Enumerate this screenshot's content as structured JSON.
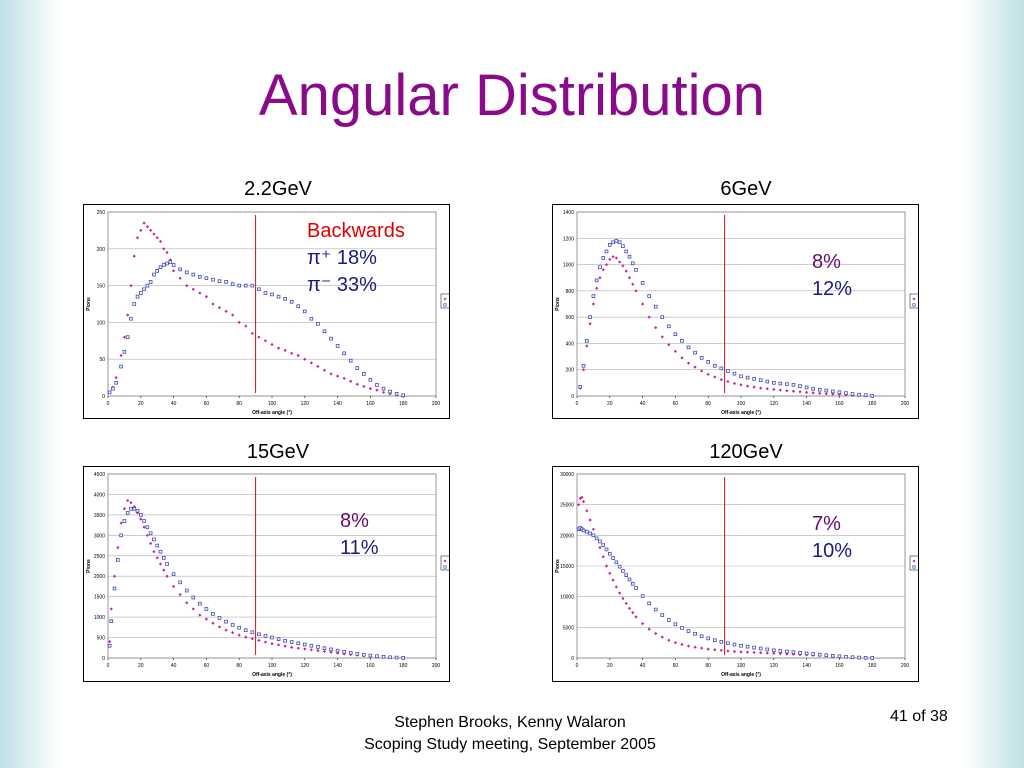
{
  "slide": {
    "title": "Angular Distribution",
    "footer_line1": "Stephen Brooks, Kenny Walaron",
    "footer_line2": "Scoping Study meeting, September 2005",
    "page_number": "41 of 38"
  },
  "colors": {
    "title": "#8a0b8a",
    "piplus": "#cc1f9a",
    "piminus": "#3d47b8",
    "marker_line": "#d0101a"
  },
  "chart_data": [
    {
      "type": "scatter",
      "title": "2.2GeV",
      "xlabel": "Off-axis angle (°)",
      "ylabel": "Pions",
      "xlim": [
        0,
        200
      ],
      "ylim": [
        0,
        250
      ],
      "xticks": [
        "0",
        "20",
        "40",
        "60",
        "80",
        "100",
        "120",
        "140",
        "160",
        "180",
        "200"
      ],
      "yticks": [
        "0",
        "50",
        "100",
        "150",
        "200",
        "250"
      ],
      "vline": 90,
      "legend": [
        "piplus",
        "piminus"
      ],
      "legend_position": "right",
      "annotation": {
        "header": "Backwards",
        "piplus_label": "π⁺ 18%",
        "piminus_label": "π⁻ 33%"
      },
      "series": [
        {
          "name": "piplus",
          "x": [
            1,
            3,
            5,
            8,
            10,
            12,
            14,
            16,
            18,
            20,
            22,
            24,
            26,
            28,
            30,
            32,
            34,
            36,
            38,
            40,
            44,
            48,
            52,
            56,
            60,
            64,
            68,
            72,
            76,
            80,
            84,
            88,
            92,
            96,
            100,
            104,
            108,
            112,
            116,
            120,
            124,
            128,
            132,
            136,
            140,
            144,
            148,
            152,
            156,
            160,
            164,
            168,
            172,
            176,
            180
          ],
          "y": [
            5,
            12,
            25,
            55,
            80,
            110,
            150,
            190,
            215,
            225,
            235,
            230,
            225,
            220,
            215,
            210,
            200,
            195,
            185,
            170,
            160,
            150,
            145,
            140,
            135,
            125,
            120,
            115,
            110,
            100,
            95,
            85,
            80,
            75,
            70,
            65,
            62,
            58,
            55,
            50,
            45,
            40,
            35,
            30,
            27,
            24,
            20,
            16,
            13,
            10,
            8,
            5,
            3,
            2,
            1
          ]
        },
        {
          "name": "piminus",
          "x": [
            1,
            3,
            5,
            8,
            10,
            12,
            14,
            16,
            18,
            20,
            22,
            24,
            26,
            28,
            30,
            32,
            34,
            36,
            38,
            40,
            44,
            48,
            52,
            56,
            60,
            64,
            68,
            72,
            76,
            80,
            84,
            88,
            92,
            96,
            100,
            104,
            108,
            112,
            116,
            120,
            124,
            128,
            132,
            136,
            140,
            144,
            148,
            152,
            156,
            160,
            164,
            168,
            172,
            176,
            180
          ],
          "y": [
            5,
            10,
            18,
            40,
            60,
            80,
            105,
            125,
            135,
            140,
            145,
            150,
            155,
            165,
            170,
            175,
            178,
            180,
            182,
            178,
            172,
            168,
            165,
            162,
            160,
            158,
            156,
            155,
            152,
            150,
            150,
            150,
            145,
            140,
            138,
            135,
            132,
            128,
            122,
            115,
            105,
            98,
            88,
            78,
            68,
            58,
            48,
            38,
            30,
            22,
            15,
            10,
            6,
            3,
            1
          ]
        }
      ]
    },
    {
      "type": "scatter",
      "title": "6GeV",
      "xlabel": "Off-axis angle (°)",
      "ylabel": "Pions",
      "xlim": [
        0,
        200
      ],
      "ylim": [
        0,
        1400
      ],
      "xticks": [
        "0",
        "20",
        "40",
        "60",
        "80",
        "100",
        "120",
        "140",
        "160",
        "180",
        "200"
      ],
      "yticks": [
        "0",
        "200",
        "400",
        "600",
        "800",
        "1000",
        "1200",
        "1400"
      ],
      "vline": 90,
      "legend": [
        "piplus",
        "piminus"
      ],
      "legend_position": "right",
      "annotation": {
        "header": "",
        "piplus_label": "8%",
        "piminus_label": "12%"
      },
      "series": [
        {
          "name": "piplus",
          "x": [
            2,
            4,
            6,
            8,
            10,
            12,
            14,
            16,
            18,
            20,
            22,
            24,
            26,
            28,
            30,
            32,
            34,
            36,
            40,
            44,
            48,
            52,
            56,
            60,
            64,
            68,
            72,
            76,
            80,
            84,
            88,
            92,
            96,
            100,
            104,
            108,
            112,
            116,
            120,
            124,
            128,
            132,
            136,
            140,
            144,
            148,
            152,
            156,
            160,
            164,
            168,
            172,
            176,
            180
          ],
          "y": [
            60,
            200,
            380,
            550,
            700,
            820,
            900,
            960,
            1000,
            1040,
            1060,
            1050,
            1020,
            990,
            950,
            900,
            850,
            800,
            700,
            600,
            520,
            450,
            390,
            340,
            290,
            250,
            220,
            190,
            165,
            145,
            125,
            110,
            95,
            85,
            75,
            68,
            60,
            55,
            50,
            45,
            40,
            36,
            32,
            28,
            24,
            20,
            17,
            14,
            11,
            8,
            6,
            4,
            2,
            1
          ]
        },
        {
          "name": "piminus",
          "x": [
            2,
            4,
            6,
            8,
            10,
            12,
            14,
            16,
            18,
            20,
            22,
            24,
            26,
            28,
            30,
            32,
            34,
            36,
            40,
            44,
            48,
            52,
            56,
            60,
            64,
            68,
            72,
            76,
            80,
            84,
            88,
            92,
            96,
            100,
            104,
            108,
            112,
            116,
            120,
            124,
            128,
            132,
            136,
            140,
            144,
            148,
            152,
            156,
            160,
            164,
            168,
            172,
            176,
            180
          ],
          "y": [
            70,
            230,
            420,
            600,
            760,
            880,
            980,
            1050,
            1100,
            1150,
            1170,
            1180,
            1170,
            1140,
            1100,
            1060,
            1010,
            960,
            860,
            760,
            680,
            600,
            530,
            470,
            420,
            370,
            330,
            290,
            260,
            230,
            210,
            190,
            170,
            150,
            140,
            130,
            120,
            110,
            100,
            95,
            90,
            85,
            75,
            65,
            55,
            48,
            42,
            35,
            28,
            22,
            15,
            10,
            6,
            2
          ]
        }
      ]
    },
    {
      "type": "scatter",
      "title": "15GeV",
      "xlabel": "Off-axis angle (°)",
      "ylabel": "Pions",
      "xlim": [
        0,
        200
      ],
      "ylim": [
        0,
        4500
      ],
      "xticks": [
        "0",
        "20",
        "40",
        "60",
        "80",
        "100",
        "120",
        "140",
        "160",
        "180",
        "200"
      ],
      "yticks": [
        "0",
        "500",
        "1000",
        "1500",
        "2000",
        "2500",
        "3000",
        "3500",
        "4000",
        "4500"
      ],
      "vline": 90,
      "legend": [
        "piplus",
        "piminus"
      ],
      "legend_position": "right",
      "annotation": {
        "header": "",
        "piplus_label": "8%",
        "piminus_label": "11%"
      },
      "series": [
        {
          "name": "piplus",
          "x": [
            1,
            2,
            4,
            6,
            8,
            10,
            12,
            14,
            16,
            18,
            20,
            22,
            24,
            26,
            28,
            30,
            32,
            34,
            36,
            40,
            44,
            48,
            52,
            56,
            60,
            64,
            68,
            72,
            76,
            80,
            84,
            88,
            92,
            96,
            100,
            104,
            108,
            112,
            116,
            120,
            124,
            128,
            132,
            136,
            140,
            144,
            148,
            152,
            156,
            160,
            164,
            168,
            172,
            176,
            180
          ],
          "y": [
            400,
            1200,
            2000,
            2700,
            3300,
            3650,
            3850,
            3800,
            3700,
            3550,
            3400,
            3200,
            3000,
            2800,
            2600,
            2450,
            2300,
            2150,
            2000,
            1750,
            1550,
            1350,
            1200,
            1050,
            950,
            850,
            760,
            680,
            620,
            560,
            510,
            470,
            430,
            390,
            350,
            320,
            290,
            260,
            240,
            220,
            200,
            180,
            160,
            140,
            120,
            100,
            85,
            70,
            55,
            45,
            35,
            25,
            15,
            8,
            3
          ]
        },
        {
          "name": "piminus",
          "x": [
            1,
            2,
            4,
            6,
            8,
            10,
            12,
            14,
            16,
            18,
            20,
            22,
            24,
            26,
            28,
            30,
            32,
            34,
            36,
            40,
            44,
            48,
            52,
            56,
            60,
            64,
            68,
            72,
            76,
            80,
            84,
            88,
            92,
            96,
            100,
            104,
            108,
            112,
            116,
            120,
            124,
            128,
            132,
            136,
            140,
            144,
            148,
            152,
            156,
            160,
            164,
            168,
            172,
            176,
            180
          ],
          "y": [
            300,
            900,
            1700,
            2400,
            3000,
            3350,
            3550,
            3650,
            3650,
            3600,
            3500,
            3350,
            3200,
            3050,
            2900,
            2750,
            2600,
            2450,
            2300,
            2050,
            1850,
            1650,
            1480,
            1330,
            1200,
            1080,
            980,
            890,
            810,
            740,
            680,
            630,
            580,
            540,
            500,
            460,
            420,
            390,
            360,
            330,
            300,
            270,
            240,
            210,
            180,
            150,
            125,
            100,
            80,
            60,
            45,
            30,
            18,
            10,
            4
          ]
        }
      ]
    },
    {
      "type": "scatter",
      "title": "120GeV",
      "xlabel": "Off-axis angle (°)",
      "ylabel": "Pions",
      "xlim": [
        0,
        200
      ],
      "ylim": [
        0,
        30000
      ],
      "xticks": [
        "0",
        "20",
        "40",
        "60",
        "80",
        "100",
        "120",
        "140",
        "160",
        "180",
        "200"
      ],
      "yticks": [
        "0",
        "5000",
        "10000",
        "15000",
        "20000",
        "25000",
        "30000"
      ],
      "vline": 90,
      "legend": [
        "piplus",
        "piminus"
      ],
      "legend_position": "right",
      "annotation": {
        "header": "",
        "piplus_label": "7%",
        "piminus_label": "10%"
      },
      "series": [
        {
          "name": "piplus",
          "x": [
            1,
            2,
            3,
            4,
            6,
            8,
            10,
            12,
            14,
            16,
            18,
            20,
            22,
            24,
            26,
            28,
            30,
            32,
            34,
            36,
            40,
            44,
            48,
            52,
            56,
            60,
            64,
            68,
            72,
            76,
            80,
            84,
            88,
            92,
            96,
            100,
            104,
            108,
            112,
            116,
            120,
            124,
            128,
            132,
            136,
            140,
            144,
            148,
            152,
            156,
            160,
            164,
            168,
            172,
            176,
            180
          ],
          "y": [
            25000,
            26000,
            26200,
            25500,
            24000,
            22500,
            21000,
            19500,
            18000,
            16500,
            15000,
            13800,
            12700,
            11600,
            10600,
            9700,
            8900,
            8100,
            7400,
            6700,
            5600,
            4700,
            4000,
            3400,
            2900,
            2500,
            2200,
            1950,
            1750,
            1600,
            1450,
            1350,
            1250,
            1150,
            1050,
            1000,
            950,
            900,
            850,
            800,
            750,
            700,
            650,
            600,
            550,
            500,
            450,
            400,
            350,
            300,
            250,
            200,
            150,
            100,
            50,
            20
          ]
        },
        {
          "name": "piminus",
          "x": [
            1,
            2,
            3,
            4,
            6,
            8,
            10,
            12,
            14,
            16,
            18,
            20,
            22,
            24,
            26,
            28,
            30,
            32,
            34,
            36,
            40,
            44,
            48,
            52,
            56,
            60,
            64,
            68,
            72,
            76,
            80,
            84,
            88,
            92,
            96,
            100,
            104,
            108,
            112,
            116,
            120,
            124,
            128,
            132,
            136,
            140,
            144,
            148,
            152,
            156,
            160,
            164,
            168,
            172,
            176,
            180
          ],
          "y": [
            21000,
            21200,
            21000,
            20800,
            20600,
            20300,
            20000,
            19500,
            19000,
            18400,
            17700,
            17000,
            16300,
            15600,
            14900,
            14200,
            13500,
            12800,
            12100,
            11400,
            10100,
            8900,
            7900,
            7000,
            6200,
            5500,
            4900,
            4400,
            3950,
            3550,
            3200,
            2900,
            2650,
            2400,
            2200,
            2000,
            1850,
            1700,
            1550,
            1400,
            1250,
            1150,
            1050,
            950,
            850,
            750,
            650,
            550,
            450,
            360,
            280,
            200,
            130,
            70,
            30,
            10
          ]
        }
      ]
    }
  ]
}
